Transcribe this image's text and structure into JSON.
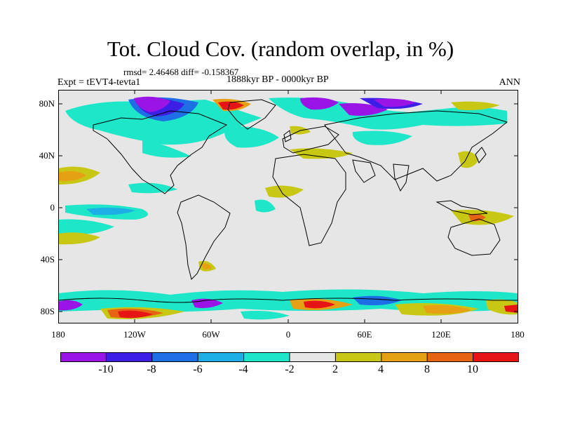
{
  "title": "Tot. Cloud Cov. (random overlap, in %)",
  "stats_text": "rmsd= 2.46468 diff= -0.158367",
  "experiment": "Expt = tEVT4-tevta1",
  "period": "1888kyr BP - 0000kyr BP",
  "season": "ANN",
  "lat_ticks": [
    "80N",
    "40N",
    "0",
    "40S",
    "80S"
  ],
  "lon_ticks": [
    "180",
    "120W",
    "60W",
    "0",
    "60E",
    "120E",
    "180"
  ],
  "colorbar": {
    "colors": [
      "#9a14e6",
      "#3c1ee6",
      "#1e6ee6",
      "#1eaee6",
      "#1ee6c8",
      "#e6e6e6",
      "#c8c814",
      "#e6a014",
      "#e66414",
      "#e61414"
    ],
    "labels": [
      "-10",
      "-8",
      "-6",
      "-4",
      "-2",
      "2",
      "4",
      "8",
      "10"
    ]
  }
}
